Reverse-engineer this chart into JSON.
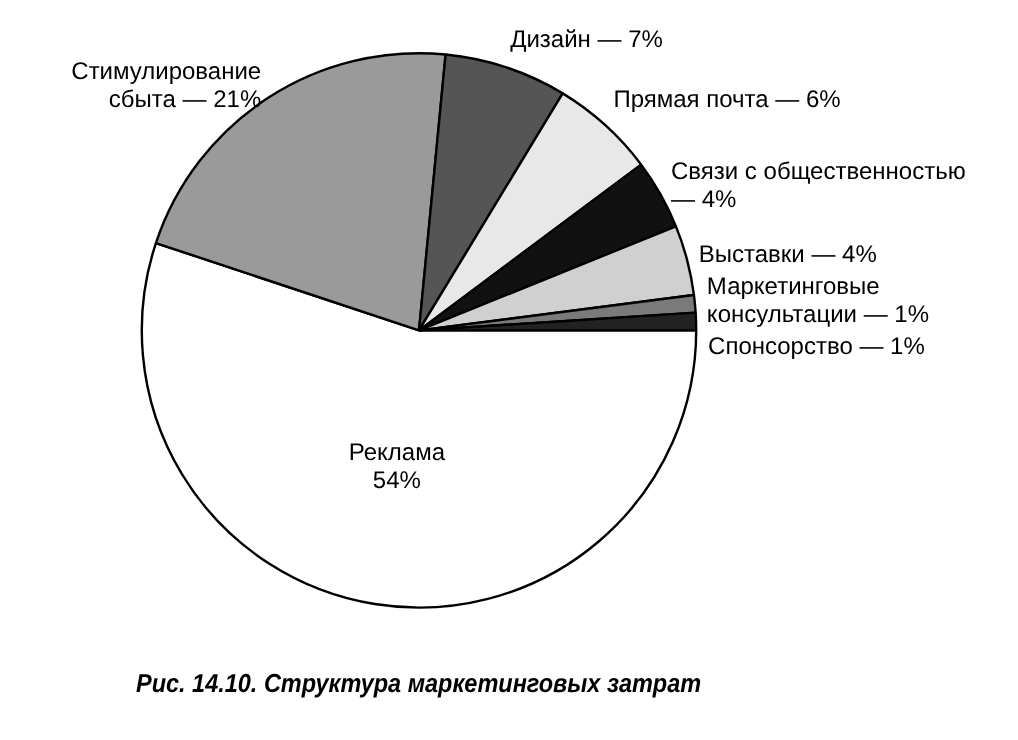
{
  "chart_data": {
    "type": "pie",
    "title": "Рис. 14.10. Структура маркетинговых затрат",
    "categories": [
      "Реклама",
      "Стимулирование сбыта",
      "Дизайн",
      "Прямая почта",
      "Связи с общественностью",
      "Выставки",
      "Маркетинговые консультации",
      "Спонсорство"
    ],
    "values": [
      54,
      21,
      7,
      6,
      4,
      4,
      1,
      1
    ],
    "value_labels": [
      "54%",
      "— 21%",
      "— 7%",
      "— 6%",
      "— 4%",
      "— 4%",
      "— 1%",
      "— 1%"
    ],
    "colors": [
      "#ffffff",
      "#9a9a9a",
      "#555555",
      "#e8e8e8",
      "#111111",
      "#d0d0d0",
      "#7a7a7a",
      "#222222"
    ],
    "legend": false
  }
}
